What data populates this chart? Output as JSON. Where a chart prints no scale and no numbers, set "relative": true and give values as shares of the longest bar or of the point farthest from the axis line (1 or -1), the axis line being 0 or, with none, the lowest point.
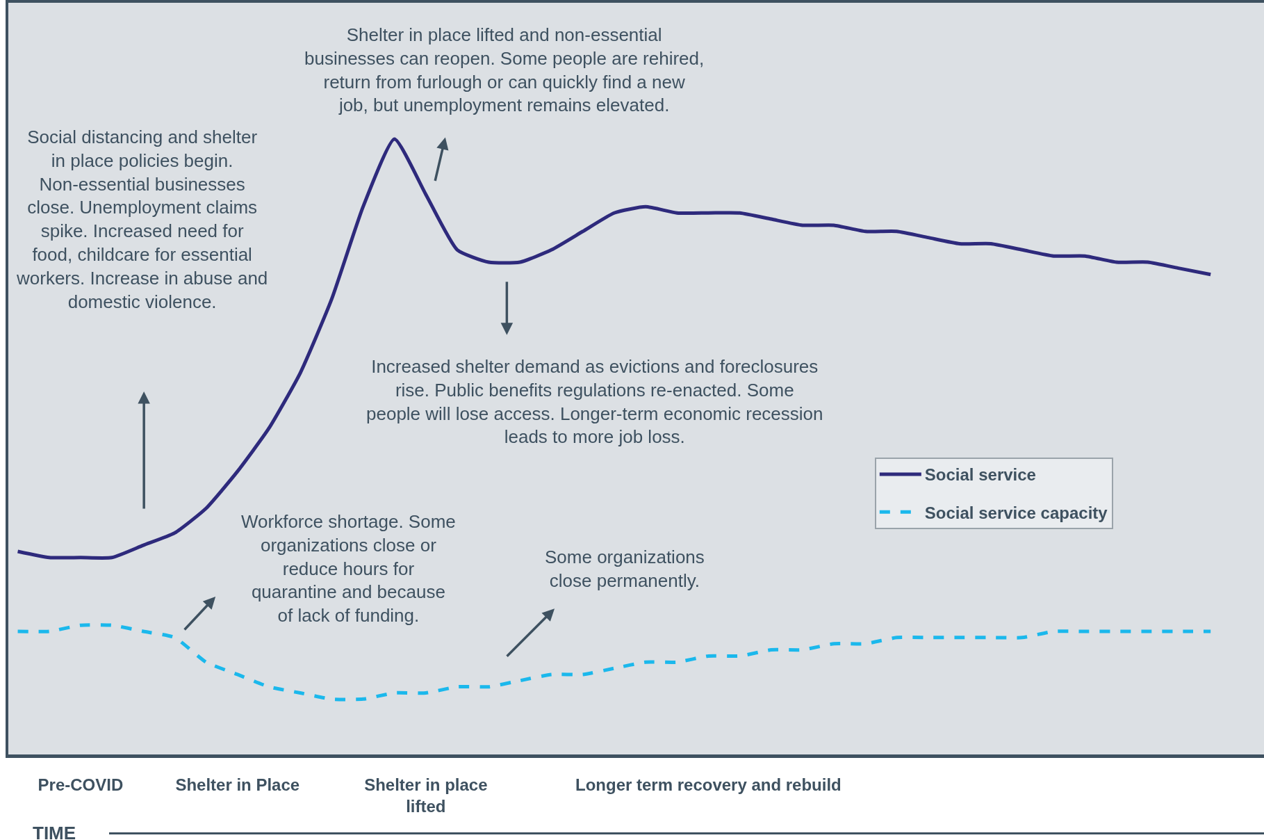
{
  "chart_data": {
    "type": "line",
    "relative": true,
    "xlabel": "TIME",
    "categories": [
      null,
      null,
      "Pre-COVID",
      null,
      null,
      null,
      null,
      "Shelter in Place",
      null,
      null,
      null,
      null,
      null,
      "Shelter in place lifted",
      null,
      null,
      null,
      null,
      null,
      null,
      null,
      null,
      "Longer term recovery and rebuild",
      null,
      null,
      null,
      null,
      null,
      null,
      null,
      null,
      null,
      null,
      null,
      null,
      null,
      null,
      null,
      null
    ],
    "series": [
      {
        "name": "Social service",
        "color": "#2e2a7c",
        "line_style": "solid",
        "values": [
          0.33,
          0.32,
          0.32,
          0.32,
          0.34,
          0.36,
          0.4,
          0.46,
          0.53,
          0.62,
          0.74,
          0.89,
          1,
          0.91,
          0.82,
          0.8,
          0.8,
          0.82,
          0.85,
          0.88,
          0.89,
          0.88,
          0.88,
          0.88,
          0.87,
          0.86,
          0.86,
          0.85,
          0.85,
          0.84,
          0.83,
          0.83,
          0.82,
          0.81,
          0.81,
          0.8,
          0.8,
          0.79,
          0.78
        ]
      },
      {
        "name": "Social service capacity",
        "color": "#1bb8ec",
        "line_style": "dashed",
        "values": [
          0.2,
          0.2,
          0.21,
          0.21,
          0.2,
          0.19,
          0.15,
          0.13,
          0.11,
          0.1,
          0.09,
          0.09,
          0.1,
          0.1,
          0.11,
          0.11,
          0.12,
          0.13,
          0.13,
          0.14,
          0.15,
          0.15,
          0.16,
          0.16,
          0.17,
          0.17,
          0.18,
          0.18,
          0.19,
          0.19,
          0.19,
          0.19,
          0.19,
          0.2,
          0.2,
          0.2,
          0.2,
          0.2,
          0.2
        ]
      }
    ],
    "annotations": [
      "Social distancing and shelter in place policies begin. Non-essential businesses close. Unemployment claims spike. Increased need for food, childcare for essential workers. Increase in abuse and domestic violence.",
      "Shelter in place lifted and non-essential businesses can reopen. Some people are rehired, return from furlough or can quickly find a new job, but unemployment remains elevated.",
      "Increased shelter demand as evictions and foreclosures rise. Public benefits regulations re-enacted. Some people will lose access. Longer-term economic recession leads to more job loss.",
      "Workforce shortage. Some organizations close or reduce hours for quarantine and because of lack of funding.",
      "Some organizations close permanently."
    ],
    "legend": "right",
    "grid": false,
    "marker": "none"
  }
}
